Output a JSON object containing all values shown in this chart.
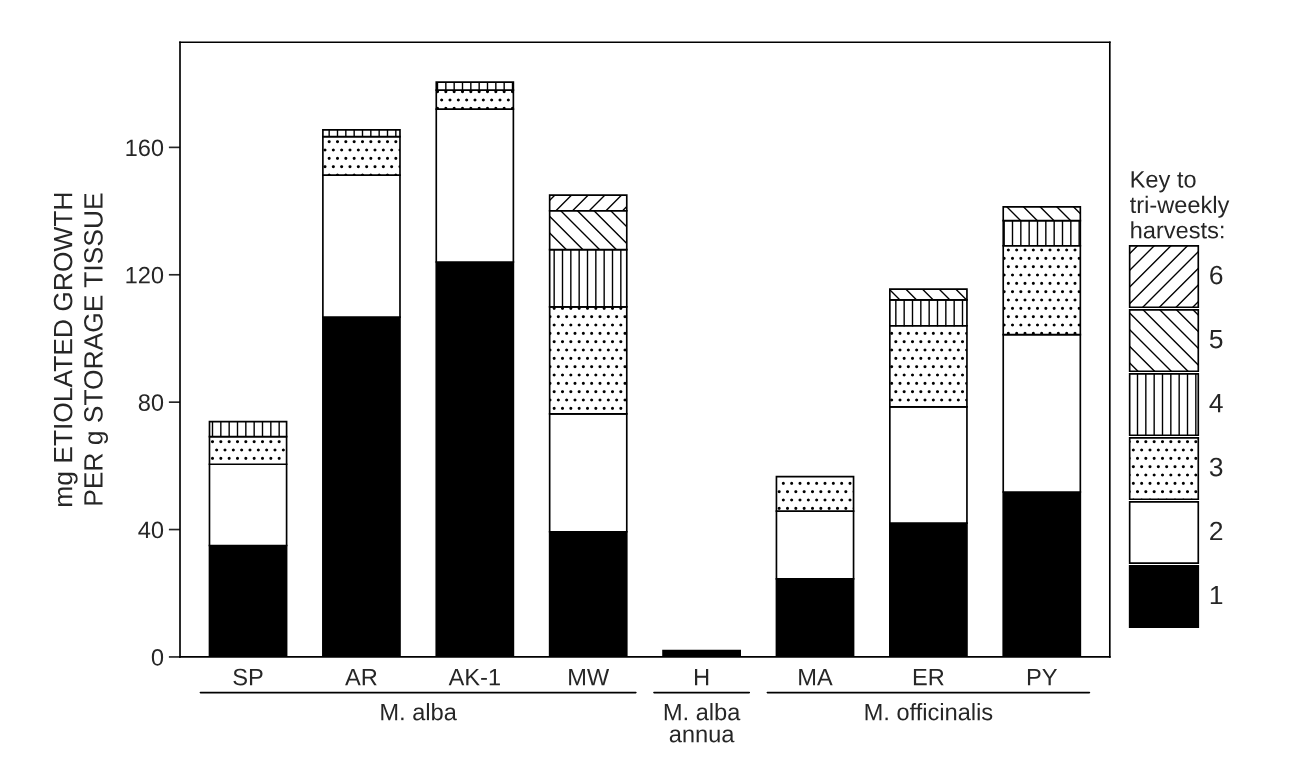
{
  "chart_data": {
    "type": "bar",
    "stacked": true,
    "ylabel": "mg ETIOLATED GROWTH\nPER g STORAGE TISSUE",
    "legend_title": "Key to\ntri-weekly\nharvests:",
    "categories": [
      "SP",
      "AR",
      "AK-1",
      "MW",
      "H",
      "MA",
      "ER",
      "PY"
    ],
    "series": [
      {
        "name": "1",
        "color": "#000000",
        "values": [
          35,
          106.7,
          124,
          39.3,
          2,
          24.5,
          42,
          51.8
        ]
      },
      {
        "name": "2",
        "color": "#ffffff",
        "values": [
          25.5,
          44.6,
          48,
          37,
          null,
          21.3,
          36.5,
          49.4
        ]
      },
      {
        "name": "3",
        "color": "#000000",
        "values": [
          8.7,
          12.1,
          6,
          33.6,
          null,
          10.8,
          25.5,
          27.9
        ]
      },
      {
        "name": "4",
        "color": "#000000",
        "values": [
          4.7,
          2.1,
          2.5,
          18,
          null,
          null,
          8.1,
          7.9
        ]
      },
      {
        "name": "5",
        "color": "#000000",
        "values": [
          null,
          null,
          null,
          12.2,
          null,
          null,
          3.4,
          4.3
        ]
      },
      {
        "name": "6",
        "color": "#000000",
        "values": [
          null,
          null,
          null,
          4.9,
          null,
          null,
          null,
          null
        ]
      }
    ],
    "annotations": [
      "M. alba",
      "M. alba\nannua",
      "M. officinalis"
    ],
    "ylim": [
      0,
      193
    ],
    "yticks": [
      0,
      40,
      80,
      120,
      160
    ],
    "grid": false,
    "legend": "right"
  }
}
